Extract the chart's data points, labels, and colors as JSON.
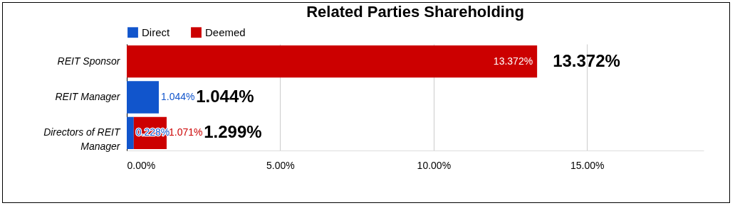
{
  "chart_data": {
    "type": "bar",
    "orientation": "horizontal",
    "stacked": true,
    "title": "Related Parties Shareholding",
    "categories": [
      "REIT Sponsor",
      "REIT Manager",
      "Directors of REIT Manager"
    ],
    "series": [
      {
        "name": "Direct",
        "color": "#1155cc",
        "values": [
          0,
          1.044,
          0.228
        ],
        "value_labels": [
          null,
          "1.044%",
          "0.228%"
        ]
      },
      {
        "name": "Deemed",
        "color": "#cc0000",
        "values": [
          13.372,
          0,
          1.071
        ],
        "value_labels": [
          "13.372%",
          null,
          "1.071%"
        ]
      }
    ],
    "totals": [
      "13.372%",
      "1.044%",
      "1.299%"
    ],
    "xlim": [
      0,
      18.8
    ],
    "xticks": [
      {
        "value": 0,
        "label": "0.00%"
      },
      {
        "value": 5,
        "label": "5.00%"
      },
      {
        "value": 10,
        "label": "10.00%"
      },
      {
        "value": 15,
        "label": "15.00%"
      }
    ],
    "grid": "x",
    "legend": "top"
  }
}
